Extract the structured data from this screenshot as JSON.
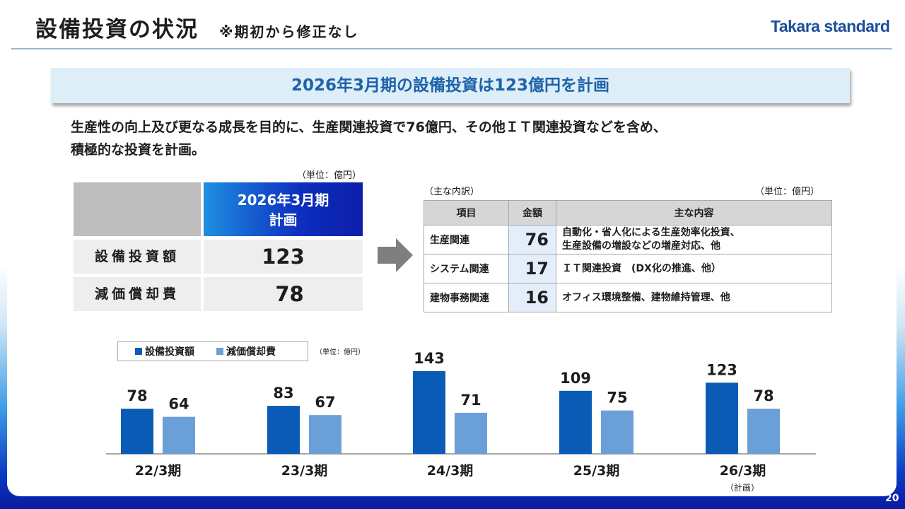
{
  "header": {
    "title": "設備投資の状況",
    "subtitle": "※期初から修正なし",
    "logo": "Takara standard"
  },
  "banner": "2026年3月期の設備投資は123億円を計画",
  "description": {
    "line1": "生産性の向上及び更なる成長を目的に、生産関連投資で76億円、その他ＩＴ関連投資などを含め、",
    "line2": "積極的な投資を計画。"
  },
  "left_table": {
    "unit": "（単位：億円）",
    "header_line1": "2026年3月期",
    "header_line2": "計画",
    "rows": [
      {
        "label": "設備投資額",
        "value": "123"
      },
      {
        "label": "減価償却費",
        "value": "78"
      }
    ]
  },
  "right_table": {
    "caption": "（主な内訳）",
    "unit": "（単位：億円）",
    "headers": [
      "項目",
      "金額",
      "主な内容"
    ],
    "rows": [
      {
        "item": "生産関連",
        "amount": "76",
        "content_line1": "自動化・省人化による生産効率化投資、",
        "content_line2": "生産設備の増設などの増産対応、他"
      },
      {
        "item": "システム関連",
        "amount": "17",
        "content_line1": "ＩＴ関連投資　(DX化の推進、他）",
        "content_line2": ""
      },
      {
        "item": "建物事務関連",
        "amount": "16",
        "content_line1": "オフィス環境整備、建物維持管理、他",
        "content_line2": ""
      }
    ]
  },
  "chart_unit": "（単位：億円）",
  "chart_note": "（計画）",
  "page_number": "20",
  "colors": {
    "capex": "#0a5bb5",
    "depreciation": "#6b9fd8",
    "banner_text": "#1c62a8",
    "logo": "#1d4f9c"
  },
  "chart_data": {
    "type": "bar",
    "categories": [
      "22/3期",
      "23/3期",
      "24/3期",
      "25/3期",
      "26/3期"
    ],
    "series": [
      {
        "name": "設備投資額",
        "values": [
          78,
          83,
          143,
          109,
          123
        ]
      },
      {
        "name": "減価償却費",
        "values": [
          64,
          67,
          71,
          75,
          78
        ]
      }
    ],
    "legend_position": "top-left",
    "grid": false
  }
}
